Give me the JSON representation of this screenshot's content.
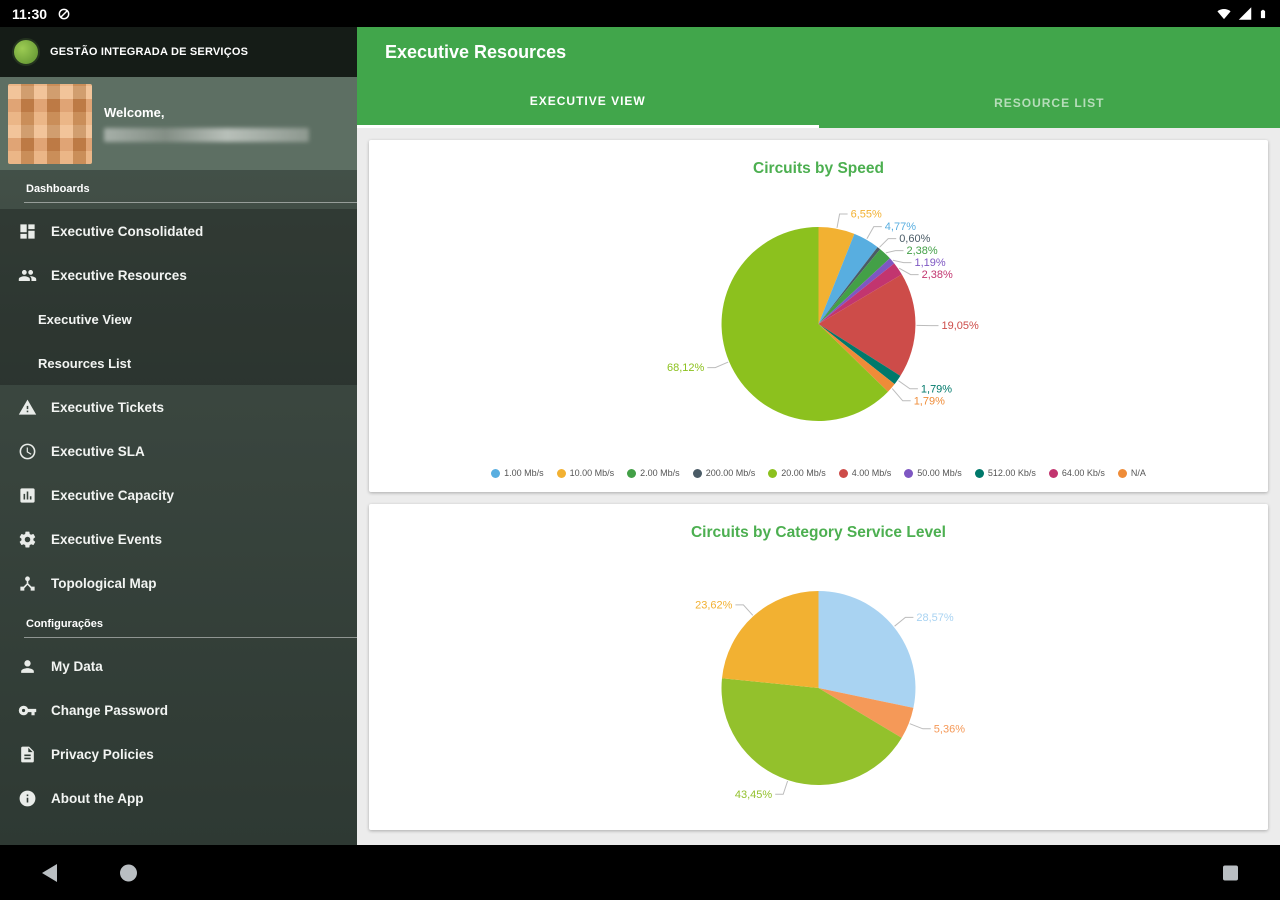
{
  "status_bar": {
    "time": "11:30"
  },
  "sidebar": {
    "brand": "GESTÃO INTEGRADA DE SERVIÇOS",
    "welcome": "Welcome,",
    "dashboards_label": "Dashboards",
    "settings_label": "Configurações",
    "menu": [
      {
        "label": "Executive Consolidated",
        "icon": "dashboard-icon"
      },
      {
        "label": "Executive Resources",
        "icon": "people-icon"
      },
      {
        "label": "Executive View",
        "icon": ""
      },
      {
        "label": "Resources List",
        "icon": ""
      },
      {
        "label": "Executive Tickets",
        "icon": "warning-icon"
      },
      {
        "label": "Executive SLA",
        "icon": "clock-icon"
      },
      {
        "label": "Executive Capacity",
        "icon": "chart-icon"
      },
      {
        "label": "Executive Events",
        "icon": "gear-icon"
      },
      {
        "label": "Topological Map",
        "icon": "hub-icon"
      }
    ],
    "settings_menu": [
      {
        "label": "My Data",
        "icon": "person-icon"
      },
      {
        "label": "Change Password",
        "icon": "key-icon"
      },
      {
        "label": "Privacy Policies",
        "icon": "document-icon"
      },
      {
        "label": "About the App",
        "icon": "info-icon"
      }
    ]
  },
  "header": {
    "title": "Executive Resources",
    "tabs": [
      {
        "label": "EXECUTIVE VIEW",
        "active": true
      },
      {
        "label": "RESOURCE LIST",
        "active": false
      }
    ]
  },
  "colors": {
    "header_green": "#41a64b",
    "title_green": "#4caf50"
  },
  "chart_data": [
    {
      "type": "pie",
      "title": "Circuits by Speed",
      "slices": [
        {
          "label": "10.00 Mb/s",
          "pct": "6,55%",
          "value": 6.55,
          "color": "#f2b132"
        },
        {
          "label": "1.00 Mb/s",
          "pct": "4,77%",
          "value": 4.77,
          "color": "#58aee0"
        },
        {
          "label": "200.00 Mb/s",
          "pct": "0,60%",
          "value": 0.6,
          "color": "#4a5b66"
        },
        {
          "label": "2.00 Mb/s",
          "pct": "2,38%",
          "value": 2.38,
          "color": "#43a047"
        },
        {
          "label": "50.00 Mb/s",
          "pct": "1,19%",
          "value": 1.19,
          "color": "#7e57c2"
        },
        {
          "label": "64.00 Kb/s",
          "pct": "2,38%",
          "value": 2.38,
          "color": "#c2356f"
        },
        {
          "label": "4.00 Mb/s",
          "pct": "19,05%",
          "value": 19.05,
          "color": "#cd4c49"
        },
        {
          "label": "512.00 Kb/s",
          "pct": "1,79%",
          "value": 1.79,
          "color": "#00796b"
        },
        {
          "label": "N/A",
          "pct": "1,79%",
          "value": 1.79,
          "color": "#ef8c38"
        },
        {
          "label": "20.00 Mb/s",
          "pct": "68,12%",
          "value": 68.12,
          "color": "#8cc11e"
        }
      ],
      "legend": [
        {
          "label": "1.00 Mb/s",
          "color": "#58aee0"
        },
        {
          "label": "10.00 Mb/s",
          "color": "#f2b132"
        },
        {
          "label": "2.00 Mb/s",
          "color": "#43a047"
        },
        {
          "label": "200.00 Mb/s",
          "color": "#4a5b66"
        },
        {
          "label": "20.00 Mb/s",
          "color": "#8cc11e"
        },
        {
          "label": "4.00 Mb/s",
          "color": "#cd4c49"
        },
        {
          "label": "50.00 Mb/s",
          "color": "#7e57c2"
        },
        {
          "label": "512.00 Kb/s",
          "color": "#00796b"
        },
        {
          "label": "64.00 Kb/s",
          "color": "#c2356f"
        },
        {
          "label": "N/A",
          "color": "#ef8c38"
        }
      ]
    },
    {
      "type": "pie",
      "title": "Circuits by Category Service Level",
      "slices": [
        {
          "pct": "28,57%",
          "value": 28.57,
          "color": "#a9d3f2"
        },
        {
          "pct": "5,36%",
          "value": 5.36,
          "color": "#f59958"
        },
        {
          "pct": "43,45%",
          "value": 43.45,
          "color": "#93c12c"
        },
        {
          "pct": "23,62%",
          "value": 23.62,
          "color": "#f2b132"
        }
      ]
    }
  ]
}
